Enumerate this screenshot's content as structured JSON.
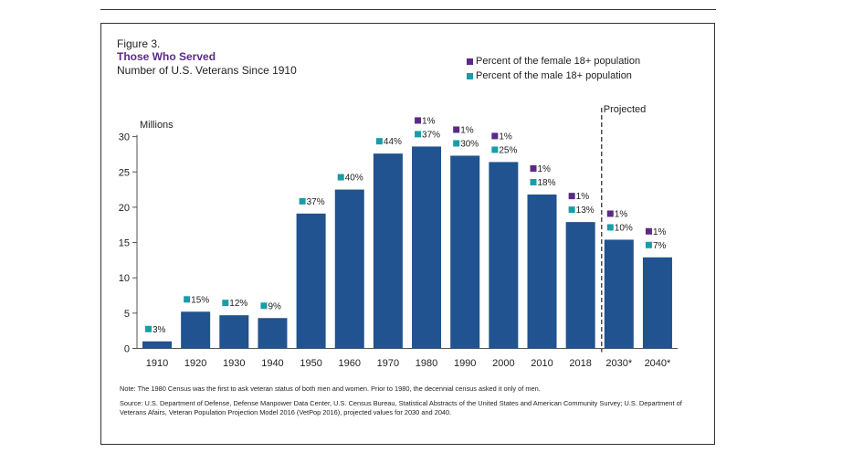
{
  "figure": {
    "label": "Figure  3.",
    "title": "Those Who Served",
    "subtitle": "Number of U.S. Veterans Since 1910"
  },
  "legend": [
    {
      "label": "Percent of the female 18+ population",
      "color": "#5b2a86"
    },
    {
      "label": "Percent of the male 18+ population",
      "color": "#1a9da6"
    }
  ],
  "chart_data": {
    "type": "bar",
    "ylabel": "Millions",
    "ylim": [
      0,
      30
    ],
    "yticks": [
      0,
      5,
      10,
      15,
      20,
      25,
      30
    ],
    "categories": [
      "1910",
      "1920",
      "1930",
      "1940",
      "1950",
      "1960",
      "1970",
      "1980",
      "1990",
      "2000",
      "2010",
      "2018",
      "2030*",
      "2040*"
    ],
    "values": [
      1.0,
      5.2,
      4.7,
      4.3,
      19.1,
      22.5,
      27.6,
      28.6,
      27.3,
      26.4,
      21.8,
      17.9,
      15.4,
      12.9
    ],
    "male_pct": [
      "3%",
      "15%",
      "12%",
      "9%",
      "37%",
      "40%",
      "44%",
      "37%",
      "30%",
      "25%",
      "18%",
      "13%",
      "10%",
      "7%"
    ],
    "female_pct": [
      null,
      null,
      null,
      null,
      null,
      null,
      null,
      "1%",
      "1%",
      "1%",
      "1%",
      "1%",
      "1%",
      "1%"
    ],
    "projected_label": "Projected",
    "projected_from_index": 12,
    "bar_color": "#20538f",
    "female_color": "#5b2a86",
    "male_color": "#1a9da6",
    "grid": false,
    "legend_position": "top-right"
  },
  "notes": {
    "note": "Note: The  1980 Census  was the first to ask veteran status of both men and  women. Prior to 1980, the decennial census asked it only of men.",
    "source": "Source:  U.S. Department of Defense, Defense Manpower Data Center, U.S. Census Bureau, Statistical Abstracts of the United States and American Community  Survey; U.S. Department of  Veterans Afairs, Veteran Population Projection Model 2016 (VetPop 2016),  projected values for 2030 and  2040."
  }
}
